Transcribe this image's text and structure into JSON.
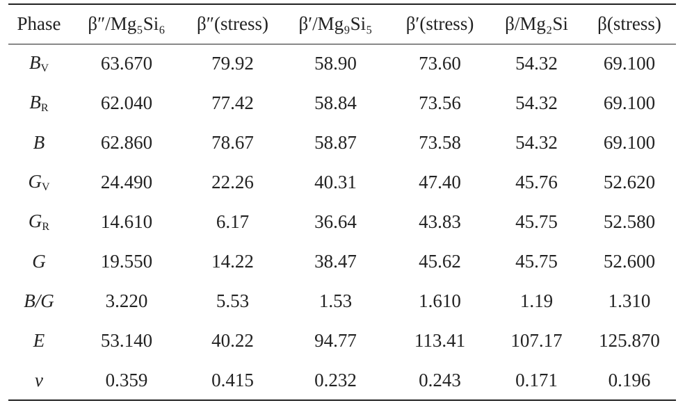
{
  "table": {
    "columns": [
      "Phase",
      "β″/Mg₅Si₆",
      "β″(stress)",
      "β′/Mg₉Si₅",
      "β′(stress)",
      "β/Mg₂Si",
      "β(stress)"
    ],
    "rows": [
      {
        "label": {
          "symbol": "B",
          "subscript": "V"
        },
        "values": [
          "63.670",
          "79.92",
          "58.90",
          "73.60",
          "54.32",
          "69.100"
        ]
      },
      {
        "label": {
          "symbol": "B",
          "subscript": "R"
        },
        "values": [
          "62.040",
          "77.42",
          "58.84",
          "73.56",
          "54.32",
          "69.100"
        ]
      },
      {
        "label": {
          "symbol": "B"
        },
        "values": [
          "62.860",
          "78.67",
          "58.87",
          "73.58",
          "54.32",
          "69.100"
        ]
      },
      {
        "label": {
          "symbol": "G",
          "subscript": "V"
        },
        "values": [
          "24.490",
          "22.26",
          "40.31",
          "47.40",
          "45.76",
          "52.620"
        ]
      },
      {
        "label": {
          "symbol": "G",
          "subscript": "R"
        },
        "values": [
          "14.610",
          "6.17",
          "36.64",
          "43.83",
          "45.75",
          "52.580"
        ]
      },
      {
        "label": {
          "symbol": "G"
        },
        "values": [
          "19.550",
          "14.22",
          "38.47",
          "45.62",
          "45.75",
          "52.600"
        ]
      },
      {
        "label": {
          "symbol": "B/G"
        },
        "values": [
          "3.220",
          "5.53",
          "1.53",
          "1.610",
          "1.19",
          "1.310"
        ]
      },
      {
        "label": {
          "symbol": "E"
        },
        "values": [
          "53.140",
          "40.22",
          "94.77",
          "113.41",
          "107.17",
          "125.870"
        ]
      },
      {
        "label": {
          "symbol": "ν"
        },
        "values": [
          "0.359",
          "0.415",
          "0.232",
          "0.243",
          "0.171",
          "0.196"
        ]
      }
    ]
  }
}
